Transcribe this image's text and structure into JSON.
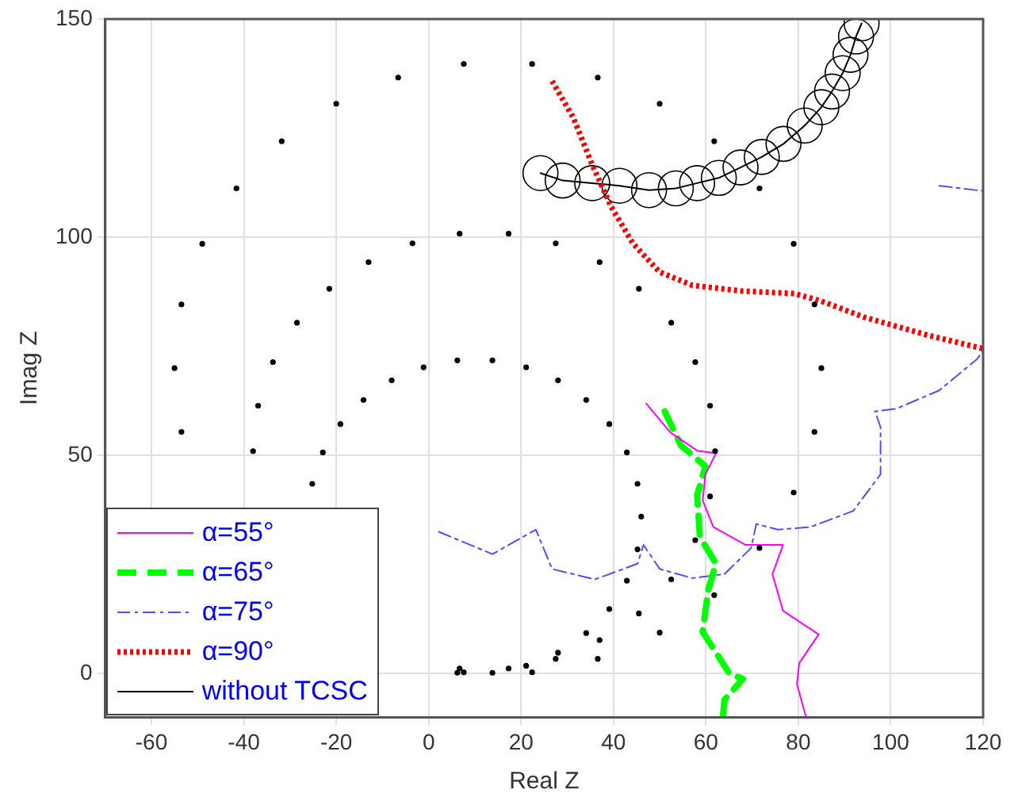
{
  "chart_data": {
    "type": "line",
    "xlabel": "Real Z",
    "ylabel": "Imag Z",
    "xlim": [
      -70,
      120
    ],
    "ylim": [
      -10,
      150
    ],
    "xticks": [
      -60,
      -40,
      -20,
      0,
      20,
      40,
      60,
      80,
      100,
      120
    ],
    "yticks": [
      0,
      50,
      100,
      150
    ],
    "grid": true,
    "legend": "bottom left",
    "series": [
      {
        "type": "scatter",
        "color": "#000000",
        "marker": "circle",
        "x": [
          85,
          83.5,
          79,
          71.6,
          61.8,
          50,
          36.6,
          22.4,
          7.6,
          -6.6,
          -20,
          -31.8,
          -41.6,
          -49,
          -53.5,
          -55,
          -53.5,
          7.6,
          22.4,
          36.6,
          50,
          61.8,
          71.6,
          79,
          83.5
        ],
        "values": [
          70,
          84.6,
          98.5,
          111.2,
          122,
          130.6,
          136.6,
          139.7,
          139.7,
          136.6,
          130.6,
          122,
          111.2,
          98.5,
          84.6,
          70,
          55.4,
          0.3,
          0.3,
          3.4,
          9.4,
          18,
          28.8,
          41.5,
          55.4
        ]
      },
      {
        "type": "scatter",
        "color": "#000000",
        "marker": "circle",
        "x": [
          62,
          60.9,
          57.7,
          52.5,
          45.5,
          37,
          27.5,
          17.3,
          6.7,
          -3.5,
          -13,
          -21.5,
          -28.5,
          -33.7,
          -36.9,
          -38,
          6.7,
          17.3,
          27.5,
          37,
          45.5,
          52.5,
          57.7,
          60.9
        ],
        "values": [
          51,
          61.4,
          71.4,
          80.4,
          88.2,
          94.3,
          98.6,
          100.8,
          100.8,
          98.6,
          94.3,
          88.2,
          80.4,
          71.4,
          61.4,
          51,
          1.2,
          1.2,
          3.4,
          7.7,
          13.8,
          21.6,
          30.6,
          40.6
        ]
      },
      {
        "type": "scatter",
        "color": "#000000",
        "marker": "circle",
        "x": [
          46,
          45.2,
          42.9,
          39.1,
          34.1,
          28,
          21.1,
          13.8,
          6.2,
          -1.1,
          -8,
          -14.1,
          -19.1,
          -22.9,
          -25.2,
          6.2,
          13.8,
          21.1,
          28,
          34.1,
          39.1,
          42.9,
          45.2
        ],
        "values": [
          36,
          43.5,
          50.7,
          57.2,
          62.7,
          67.2,
          70.2,
          71.8,
          71.8,
          70.2,
          67.2,
          62.7,
          57.2,
          50.7,
          43.5,
          0.2,
          0.2,
          1.8,
          4.8,
          9.3,
          14.8,
          21.3,
          28.5
        ]
      },
      {
        "type": "line",
        "name": "α=55°",
        "color": "#ff00ff",
        "line_style": "solid",
        "x": [
          47.1,
          52.3,
          58.1,
          62.2,
          59.9,
          59.3,
          61.6,
          68.6,
          76.7,
          74.4,
          76.7,
          84.4,
          80.2,
          79.7,
          81.7
        ],
        "values": [
          61.9,
          55.3,
          51.1,
          50.5,
          45.7,
          39.7,
          33.6,
          29.5,
          29.5,
          22.8,
          14.4,
          9,
          2.4,
          -2.4,
          -10
        ]
      },
      {
        "type": "line",
        "name": "α=65°",
        "color": "#00ff00",
        "line_style": "dashed",
        "x": [
          51.1,
          54.6,
          59.9,
          58.1,
          58.7,
          62.2,
          60.5,
          59.3,
          65.1,
          68,
          64,
          63.7
        ],
        "values": [
          60.1,
          52.3,
          47.5,
          40.9,
          31.3,
          25.2,
          19.2,
          9.6,
          0,
          -1.2,
          -6,
          -10
        ]
      },
      {
        "type": "line",
        "name": "α=75°",
        "color": "#4d4dff",
        "line_style": "dashdot",
        "x": [
          2.2,
          13.8,
          23.2,
          26.7,
          36,
          45.2,
          46.5,
          50,
          57,
          64,
          69.8,
          70.9,
          75.6,
          82.6,
          91.9,
          97.8,
          97.8,
          96.6,
          101.2,
          110.5,
          118.7,
          120,
          null,
          110.5,
          120
        ],
        "values": [
          32.5,
          27.4,
          33,
          24,
          21.6,
          25.2,
          29.5,
          24,
          21.9,
          22.8,
          28.8,
          34.3,
          33,
          33.6,
          37.3,
          45.7,
          56.5,
          60.1,
          60.7,
          64.9,
          72.1,
          74,
          null,
          111.8,
          110.6
        ]
      },
      {
        "type": "line",
        "name": "α=90°",
        "color": "#ff0000",
        "line_style": "dotted",
        "x": [
          26.7,
          31.3,
          35.4,
          39.5,
          44.2,
          50,
          57,
          67.5,
          79.1,
          84.9,
          94.2,
          108.2,
          119.9
        ],
        "values": [
          135.8,
          127.4,
          116.6,
          107,
          98.6,
          92,
          89,
          87.7,
          87.1,
          85.4,
          81.7,
          77.5,
          74.5
        ]
      },
      {
        "type": "line",
        "name": "without TCSC",
        "color": "#000000",
        "line_style": "solid",
        "marker": "circle",
        "x": [
          24.2,
          29,
          35.4,
          41.3,
          47.7,
          53.5,
          58.1,
          62.8,
          67.5,
          72.1,
          76.8,
          81.4,
          85,
          87.3,
          89.6,
          91.3,
          92.5,
          93.7
        ],
        "values": [
          114.7,
          113,
          112.4,
          111.8,
          110.8,
          111.2,
          112.4,
          113.6,
          116,
          118.4,
          121.4,
          125.6,
          129.8,
          133.4,
          137.6,
          141.8,
          146,
          149
        ]
      }
    ]
  }
}
